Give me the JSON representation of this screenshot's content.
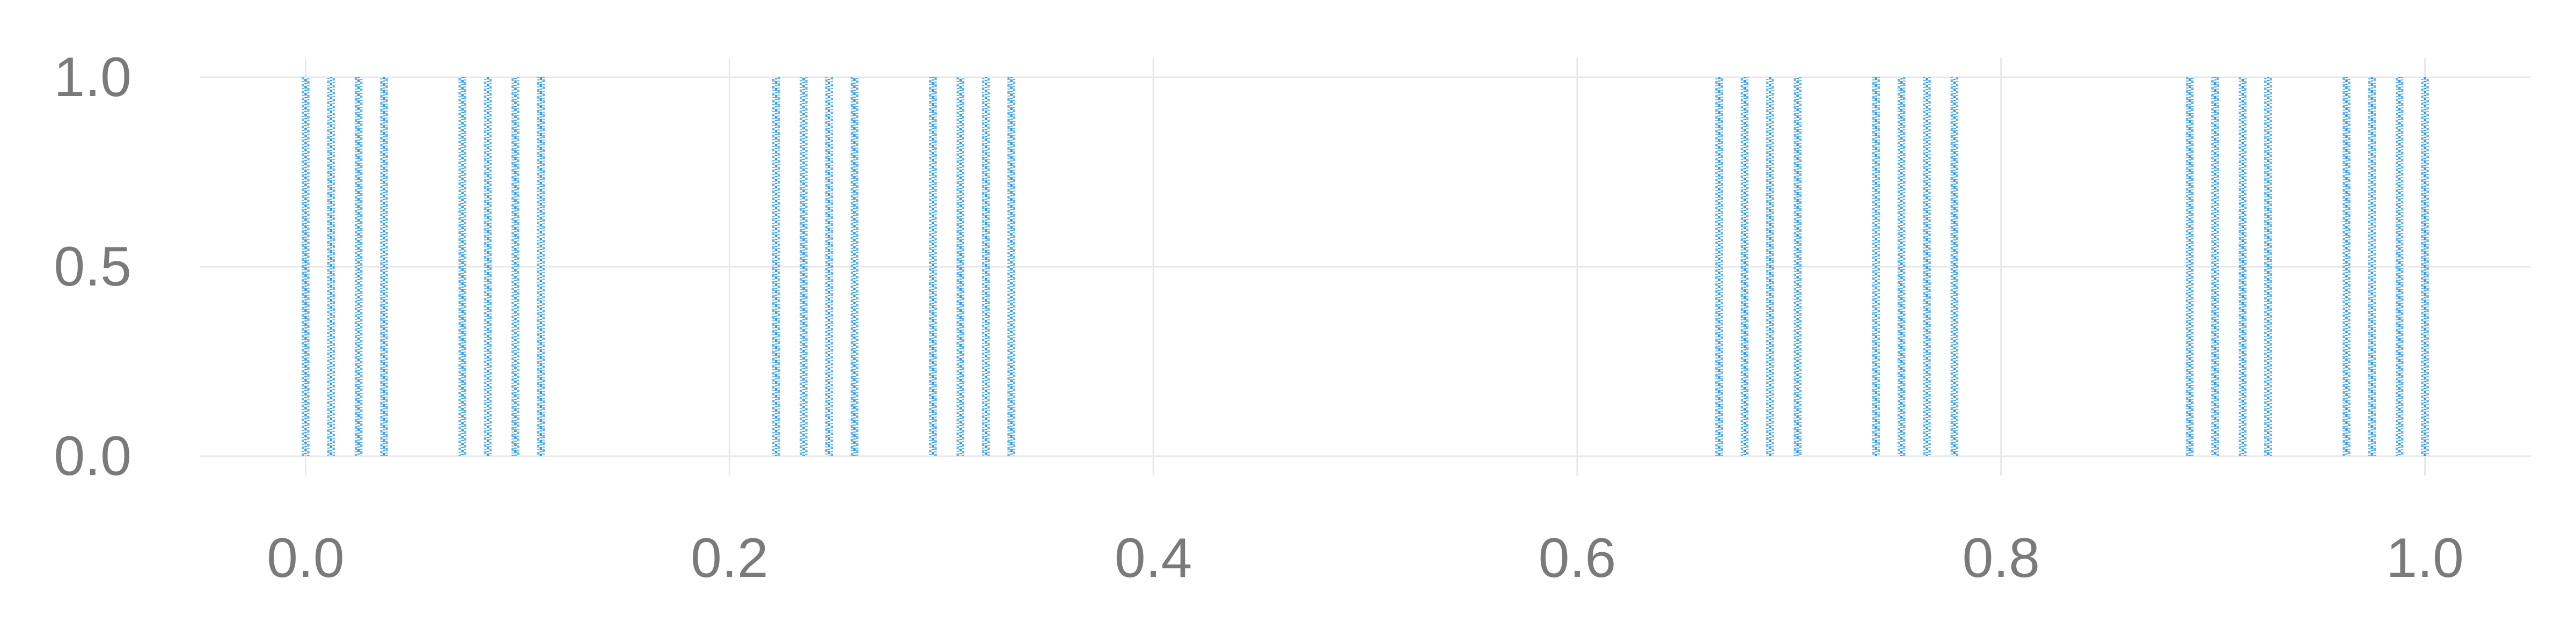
{
  "chart_data": {
    "type": "scatter",
    "title": "",
    "xlabel": "",
    "ylabel": "",
    "xlim": [
      -0.05,
      1.05
    ],
    "ylim": [
      0,
      1
    ],
    "x_ticks": [
      {
        "value": 0.0,
        "label": "0.0"
      },
      {
        "value": 0.2,
        "label": "0.2"
      },
      {
        "value": 0.4,
        "label": "0.4"
      },
      {
        "value": 0.6,
        "label": "0.6"
      },
      {
        "value": 0.8,
        "label": "0.8"
      },
      {
        "value": 1.0,
        "label": "1.0"
      }
    ],
    "y_ticks": [
      {
        "value": 0.0,
        "label": "0.0"
      },
      {
        "value": 0.5,
        "label": "0.5"
      },
      {
        "value": 1.0,
        "label": "1.0"
      }
    ],
    "grid": true,
    "legend": "none",
    "point_color": "#2196f3",
    "grid_color": "#e8e8e8",
    "tick_label_color": "#7a7a7a",
    "series": [
      {
        "x": [
          0.0,
          0.012,
          0.025,
          0.037,
          0.074,
          0.086,
          0.099,
          0.111,
          0.222,
          0.235,
          0.247,
          0.259,
          0.296,
          0.309,
          0.321,
          0.333,
          0.667,
          0.679,
          0.691,
          0.704,
          0.741,
          0.753,
          0.765,
          0.778,
          0.889,
          0.901,
          0.914,
          0.926,
          0.963,
          0.975,
          0.988,
          1.0
        ],
        "y_range": [
          0,
          1
        ]
      }
    ]
  }
}
